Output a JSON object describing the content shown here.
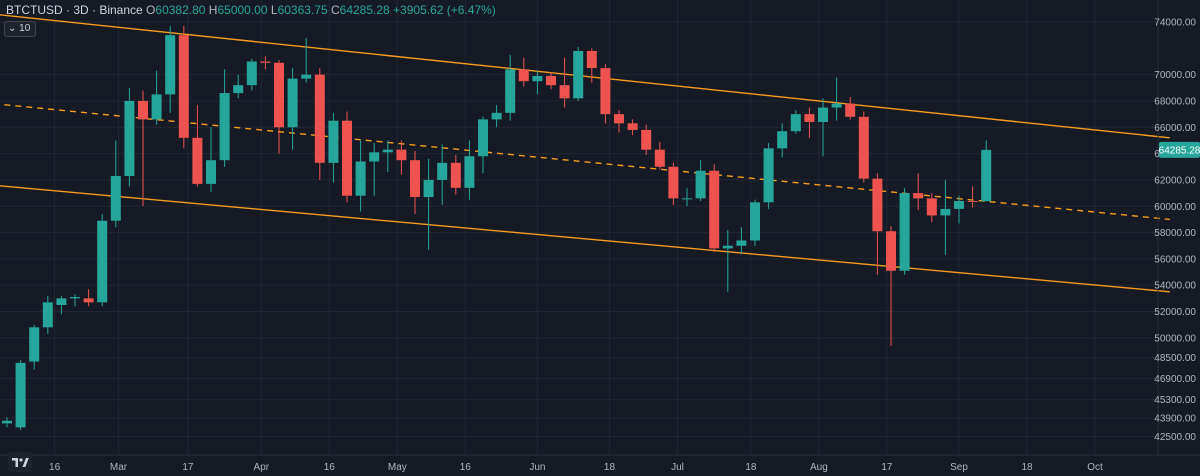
{
  "header": {
    "symbol": "BTCTUSD · 3D · Binance",
    "open_label": "O",
    "open": "60382.80",
    "high_label": "H",
    "high": "65000.00",
    "low_label": "L",
    "low": "60363.75",
    "close_label": "C",
    "close": "64285.28",
    "change": "+3905.62 (+6.47%)"
  },
  "indicator_badge": "10",
  "colors": {
    "up": "#26a69a",
    "down": "#ef5350",
    "channel": "#f59d1f",
    "grid": "#232734",
    "axis_text": "#b2b5be",
    "background": "#161a25"
  },
  "chart_data": {
    "type": "candlestick",
    "title": "",
    "interval": "3D",
    "xlabel": "",
    "ylabel": "",
    "ylim": [
      42000,
      75000
    ],
    "grid": true,
    "y_ticks": [
      42500,
      43900,
      45300,
      46900,
      48500,
      50000,
      52000,
      54000,
      56000,
      58000,
      60000,
      62000,
      64000,
      66000,
      68000,
      70000,
      74000
    ],
    "y_tick_labels": [
      "42500.00",
      "43900.00",
      "45300.00",
      "46900.00",
      "48500.00",
      "50000.00",
      "52000.00",
      "54000.00",
      "56000.00",
      "58000.00",
      "60000.00",
      "62000.00",
      "64000.00",
      "66000.00",
      "68000.00",
      "70000.00",
      "74000.00"
    ],
    "x_ticks": [
      {
        "label": "16",
        "i": 3.5
      },
      {
        "label": "Mar",
        "i": 8.2
      },
      {
        "label": "17",
        "i": 13.3
      },
      {
        "label": "Apr",
        "i": 18.7
      },
      {
        "label": "16",
        "i": 23.7
      },
      {
        "label": "May",
        "i": 28.7
      },
      {
        "label": "16",
        "i": 33.7
      },
      {
        "label": "Jun",
        "i": 39.0
      },
      {
        "label": "18",
        "i": 44.3
      },
      {
        "label": "Jul",
        "i": 49.3
      },
      {
        "label": "18",
        "i": 54.7
      },
      {
        "label": "Aug",
        "i": 59.7
      },
      {
        "label": "17",
        "i": 64.7
      },
      {
        "label": "Sep",
        "i": 70.0
      },
      {
        "label": "18",
        "i": 75.0
      },
      {
        "label": "Oct",
        "i": 80.0
      }
    ],
    "current_price_label": "64285.28",
    "current_price": 64285.28,
    "candles": [
      {
        "o": 43500,
        "h": 43950,
        "l": 43200,
        "c": 43700
      },
      {
        "o": 43200,
        "h": 48300,
        "l": 43000,
        "c": 48100
      },
      {
        "o": 48200,
        "h": 51000,
        "l": 47600,
        "c": 50800
      },
      {
        "o": 50800,
        "h": 53200,
        "l": 50300,
        "c": 52700
      },
      {
        "o": 52500,
        "h": 53200,
        "l": 51800,
        "c": 53000
      },
      {
        "o": 53000,
        "h": 53300,
        "l": 52400,
        "c": 53100
      },
      {
        "o": 53000,
        "h": 53700,
        "l": 52400,
        "c": 52700
      },
      {
        "o": 52700,
        "h": 59400,
        "l": 52400,
        "c": 58900
      },
      {
        "o": 58900,
        "h": 65000,
        "l": 58400,
        "c": 62300
      },
      {
        "o": 62300,
        "h": 69000,
        "l": 61500,
        "c": 68000
      },
      {
        "o": 68000,
        "h": 68800,
        "l": 60000,
        "c": 66600
      },
      {
        "o": 66600,
        "h": 70300,
        "l": 66200,
        "c": 68500
      },
      {
        "o": 68500,
        "h": 73700,
        "l": 67100,
        "c": 73000
      },
      {
        "o": 73000,
        "h": 73700,
        "l": 64400,
        "c": 65200
      },
      {
        "o": 65200,
        "h": 67700,
        "l": 61500,
        "c": 61700
      },
      {
        "o": 61700,
        "h": 66000,
        "l": 61100,
        "c": 63500
      },
      {
        "o": 63500,
        "h": 70400,
        "l": 63000,
        "c": 68600
      },
      {
        "o": 68600,
        "h": 70000,
        "l": 68200,
        "c": 69200
      },
      {
        "o": 69200,
        "h": 71200,
        "l": 68800,
        "c": 71000
      },
      {
        "o": 71000,
        "h": 71400,
        "l": 70400,
        "c": 70900
      },
      {
        "o": 70900,
        "h": 71100,
        "l": 64000,
        "c": 66000
      },
      {
        "o": 66000,
        "h": 70500,
        "l": 64300,
        "c": 69700
      },
      {
        "o": 69700,
        "h": 72800,
        "l": 69400,
        "c": 70000
      },
      {
        "o": 70000,
        "h": 70500,
        "l": 62000,
        "c": 63300
      },
      {
        "o": 63300,
        "h": 67100,
        "l": 61800,
        "c": 66500
      },
      {
        "o": 66500,
        "h": 67200,
        "l": 60300,
        "c": 60800
      },
      {
        "o": 60800,
        "h": 65000,
        "l": 59600,
        "c": 63400
      },
      {
        "o": 63400,
        "h": 64800,
        "l": 60800,
        "c": 64100
      },
      {
        "o": 64100,
        "h": 65000,
        "l": 62600,
        "c": 64300
      },
      {
        "o": 64300,
        "h": 65000,
        "l": 62400,
        "c": 63500
      },
      {
        "o": 63500,
        "h": 64200,
        "l": 59400,
        "c": 60700
      },
      {
        "o": 60700,
        "h": 63600,
        "l": 56700,
        "c": 62000
      },
      {
        "o": 62000,
        "h": 64700,
        "l": 60100,
        "c": 63300
      },
      {
        "o": 63300,
        "h": 63900,
        "l": 60900,
        "c": 61400
      },
      {
        "o": 61400,
        "h": 65000,
        "l": 60500,
        "c": 63800
      },
      {
        "o": 63800,
        "h": 66800,
        "l": 62500,
        "c": 66600
      },
      {
        "o": 66600,
        "h": 67700,
        "l": 66000,
        "c": 67100
      },
      {
        "o": 67100,
        "h": 71500,
        "l": 66500,
        "c": 70400
      },
      {
        "o": 70400,
        "h": 71300,
        "l": 69100,
        "c": 69500
      },
      {
        "o": 69500,
        "h": 70300,
        "l": 68500,
        "c": 69900
      },
      {
        "o": 69900,
        "h": 70200,
        "l": 68900,
        "c": 69200
      },
      {
        "o": 69200,
        "h": 71300,
        "l": 67500,
        "c": 68200
      },
      {
        "o": 68200,
        "h": 72100,
        "l": 68000,
        "c": 71800
      },
      {
        "o": 71800,
        "h": 72000,
        "l": 69400,
        "c": 70500
      },
      {
        "o": 70500,
        "h": 70800,
        "l": 66300,
        "c": 67000
      },
      {
        "o": 67000,
        "h": 67300,
        "l": 65600,
        "c": 66300
      },
      {
        "o": 66300,
        "h": 66600,
        "l": 65400,
        "c": 65800
      },
      {
        "o": 65800,
        "h": 66200,
        "l": 63900,
        "c": 64300
      },
      {
        "o": 64300,
        "h": 64900,
        "l": 62800,
        "c": 63000
      },
      {
        "o": 63000,
        "h": 63300,
        "l": 60100,
        "c": 60600
      },
      {
        "o": 60600,
        "h": 61400,
        "l": 60000,
        "c": 60600
      },
      {
        "o": 60600,
        "h": 63500,
        "l": 60400,
        "c": 62700
      },
      {
        "o": 62700,
        "h": 63200,
        "l": 56500,
        "c": 56800
      },
      {
        "o": 56800,
        "h": 58200,
        "l": 53500,
        "c": 57000
      },
      {
        "o": 57000,
        "h": 58400,
        "l": 56400,
        "c": 57400
      },
      {
        "o": 57400,
        "h": 60500,
        "l": 57000,
        "c": 60300
      },
      {
        "o": 60300,
        "h": 64800,
        "l": 59800,
        "c": 64400
      },
      {
        "o": 64400,
        "h": 66300,
        "l": 63700,
        "c": 65700
      },
      {
        "o": 65700,
        "h": 67300,
        "l": 65500,
        "c": 67000
      },
      {
        "o": 67000,
        "h": 67500,
        "l": 65200,
        "c": 66400
      },
      {
        "o": 66400,
        "h": 68200,
        "l": 63800,
        "c": 67500
      },
      {
        "o": 67500,
        "h": 69800,
        "l": 66500,
        "c": 67800
      },
      {
        "o": 67800,
        "h": 68300,
        "l": 66600,
        "c": 66800
      },
      {
        "o": 66800,
        "h": 67200,
        "l": 61800,
        "c": 62100
      },
      {
        "o": 62100,
        "h": 62500,
        "l": 54800,
        "c": 58100
      },
      {
        "o": 58100,
        "h": 58500,
        "l": 49400,
        "c": 55100
      },
      {
        "o": 55100,
        "h": 61400,
        "l": 54800,
        "c": 61000
      },
      {
        "o": 61000,
        "h": 62500,
        "l": 59700,
        "c": 60600
      },
      {
        "o": 60600,
        "h": 61000,
        "l": 58800,
        "c": 59300
      },
      {
        "o": 59300,
        "h": 62000,
        "l": 56300,
        "c": 59800
      },
      {
        "o": 59800,
        "h": 60800,
        "l": 58700,
        "c": 60400
      },
      {
        "o": 60400,
        "h": 61500,
        "l": 59900,
        "c": 60383
      },
      {
        "o": 60383,
        "h": 65000,
        "l": 60364,
        "c": 64285
      }
    ],
    "channel_lines": [
      {
        "name": "upper",
        "style": "solid",
        "from": {
          "i": -1,
          "p": 74600
        },
        "to": {
          "i": 85.5,
          "p": 65200
        }
      },
      {
        "name": "middle",
        "style": "dashed",
        "from": {
          "i": -1,
          "p": 67800
        },
        "to": {
          "i": 85.5,
          "p": 59000
        }
      },
      {
        "name": "lower",
        "style": "solid",
        "from": {
          "i": -1,
          "p": 61600
        },
        "to": {
          "i": 85.5,
          "p": 53500
        }
      }
    ]
  }
}
